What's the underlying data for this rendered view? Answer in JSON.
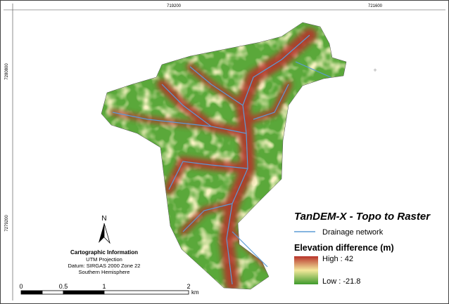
{
  "map": {
    "coords": {
      "x": [
        "719200",
        "721600"
      ],
      "y": [
        "7280800",
        "7279200"
      ]
    },
    "legend": {
      "title": "TanDEM-X - Topo to Raster",
      "drainage": "Drainage network",
      "elevation_title": "Elevation difference (m)",
      "high": "High : 42",
      "low": "Low : -21.8"
    },
    "north": "N",
    "cartographic_info": [
      "Cartographic Information",
      "UTM Projection",
      "Datum: SIRGAS 2000 Zone 22",
      "Southern Hemisphere"
    ],
    "scale": {
      "labels": [
        "0",
        "0.5",
        "1",
        "2"
      ],
      "unit": "km"
    }
  }
}
